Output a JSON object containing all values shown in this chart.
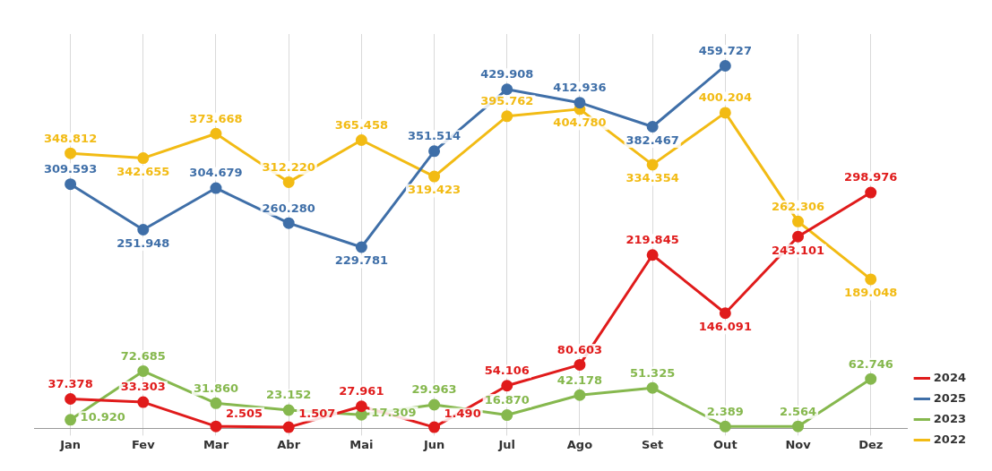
{
  "chart_data": {
    "type": "line",
    "categories": [
      "Jan",
      "Fev",
      "Mar",
      "Abr",
      "Mai",
      "Jun",
      "Jul",
      "Ago",
      "Set",
      "Out",
      "Nov",
      "Dez"
    ],
    "series": [
      {
        "name": "2024",
        "color": "#e01b1b",
        "values": [
          37378,
          33303,
          2505,
          1507,
          27961,
          1490,
          54106,
          80603,
          219845,
          146091,
          243101,
          298976
        ],
        "value_labels": [
          "37.378",
          "33.303",
          "2.505",
          "1.507",
          "27.961",
          "1.490",
          "54.106",
          "80.603",
          "219.845",
          "146.091",
          "243.101",
          "298.976"
        ]
      },
      {
        "name": "2025",
        "color": "#3f6fa8",
        "values": [
          309593,
          251948,
          304679,
          260280,
          229781,
          351514,
          429908,
          412936,
          382467,
          459727,
          null,
          null
        ],
        "value_labels": [
          "309.593",
          "251.948",
          "304.679",
          "260.280",
          "229.781",
          "351.514",
          "429.908",
          "412.936",
          "382.467",
          "459.727",
          null,
          null
        ]
      },
      {
        "name": "2023",
        "color": "#86b84e",
        "values": [
          10920,
          72685,
          31860,
          23152,
          17309,
          29963,
          16870,
          42178,
          51325,
          2389,
          2564,
          62746
        ],
        "value_labels": [
          "10.920",
          "72.685",
          "31.860",
          "23.152",
          "17.309",
          "29.963",
          "16.870",
          "42.178",
          "51.325",
          "2.389",
          "2.564",
          "62.746"
        ]
      },
      {
        "name": "2022",
        "color": "#f2bb14",
        "values": [
          348812,
          342655,
          373668,
          312220,
          365458,
          319423,
          395762,
          404780,
          334354,
          400204,
          262306,
          189048
        ],
        "value_labels": [
          "348.812",
          "342.655",
          "373.668",
          "312.220",
          "365.458",
          "319.423",
          "395.762",
          "404.780",
          "334.354",
          "400.204",
          "262.306",
          "189.048"
        ]
      }
    ],
    "grid": "x",
    "legend": "right",
    "marker": "circle",
    "line_style": "solid"
  }
}
